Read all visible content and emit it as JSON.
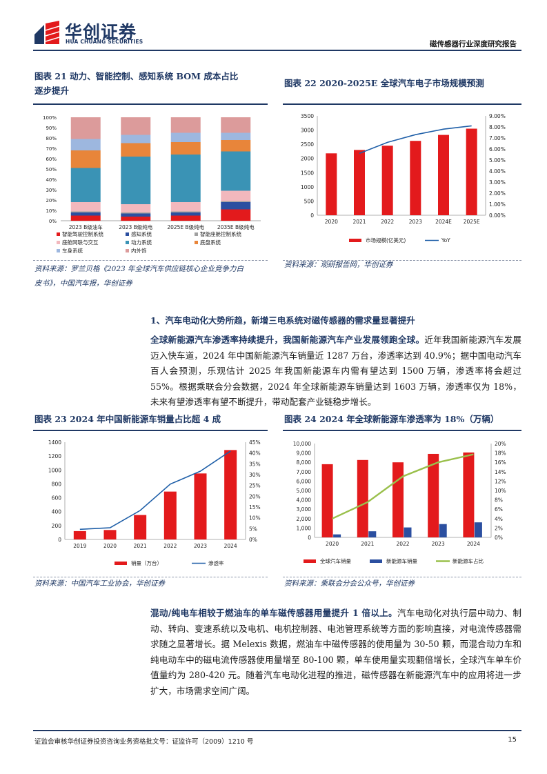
{
  "header": {
    "logo_cn": "华创证券",
    "logo_en": "HUA CHUANG SECURITIES",
    "report_title": "磁传感器行业深度研究报告"
  },
  "fig21": {
    "title_line1": "图表 21   动力、智能控制、感知系统 BOM 成本占比",
    "title_line2": "逐步提升",
    "source_line1": "资料来源：罗兰贝格《2023 年全球汽车供应链核心企业竞争力白",
    "source_line2": "皮书》，中国汽车报，华创证券",
    "chart_data": {
      "type": "bar",
      "stacked": true,
      "categories": [
        "2023 B级油车",
        "2023 B级纯电",
        "2025E B级纯电",
        "2035E B级纯电"
      ],
      "yticks": [
        "0%",
        "10%",
        "20%",
        "30%",
        "40%",
        "50%",
        "60%",
        "70%",
        "80%",
        "90%",
        "100%"
      ],
      "ylim": [
        0,
        100
      ],
      "series": [
        {
          "name": "智能驾驶控制系统",
          "color": "#e31a1c",
          "values": [
            5,
            4,
            5,
            11
          ]
        },
        {
          "name": "感知系统",
          "color": "#2b4fa0",
          "values": [
            3,
            3,
            3,
            7
          ]
        },
        {
          "name": "智能座舱控制系统",
          "color": "#a0a0a0",
          "values": [
            1,
            1,
            1,
            1
          ]
        },
        {
          "name": "座舱网联与交互",
          "color": "#f2b8bd",
          "values": [
            9,
            8,
            9,
            10
          ]
        },
        {
          "name": "动力系统",
          "color": "#3a93b5",
          "values": [
            33,
            46,
            46,
            38
          ]
        },
        {
          "name": "底盘系统",
          "color": "#e8853a",
          "values": [
            17,
            13,
            12,
            11
          ]
        },
        {
          "name": "车身系统",
          "color": "#9db7df",
          "values": [
            11,
            8,
            9,
            7
          ]
        },
        {
          "name": "内外饰",
          "color": "#dc9b9b",
          "values": [
            21,
            17,
            15,
            15
          ]
        }
      ]
    }
  },
  "fig22": {
    "title": "图表 22   2020-2025E 全球汽车电子市场规模预测",
    "source": "资料来源：观研报告网，华创证券",
    "chart_data": {
      "type": "bar",
      "categories": [
        "2020",
        "2021",
        "2022",
        "2023",
        "2024E",
        "2025E"
      ],
      "yticks_left": [
        "0",
        "500",
        "1000",
        "1500",
        "2000",
        "2500",
        "3000",
        "3500"
      ],
      "yticks_right": [
        "0.00%",
        "1.00%",
        "2.00%",
        "3.00%",
        "4.00%",
        "5.00%",
        "6.00%",
        "7.00%",
        "8.00%",
        "9.00%"
      ],
      "ylim": [
        0,
        3500
      ],
      "y2lim": [
        0,
        9
      ],
      "series": [
        {
          "name": "市场规模(亿美元)",
          "type": "bar",
          "color": "#e31a1c",
          "values": [
            2180,
            2300,
            2450,
            2620,
            2830,
            3050
          ]
        },
        {
          "name": "YoY",
          "type": "line",
          "color": "#1f5fa8",
          "values": [
            null,
            5.6,
            6.6,
            7.3,
            7.8,
            8.1
          ]
        }
      ]
    }
  },
  "section": {
    "title": "1、汽车电动化大势所趋，新增三电系统对磁传感器的需求量显著提升"
  },
  "para1": {
    "lead": "全球新能源汽车渗透率持续提升，我国新能源汽车产业发展领跑全球。",
    "body": "近年我国新能源汽车发展迈入快车道，2024 年中国新能源汽车销量近 1287 万台，渗透率达到 40.9%；据中国电动汽车百人会预测，乐观估计 2025 年我国新能源车内需有望达到 1500 万辆，渗透率将会超过 55%。根据乘联会分会数据，2024 年全球新能源车销量达到 1603 万辆，渗透率仅为 18%，未来有望渗透率有望不断提升，带动配套产业链稳步增长。"
  },
  "fig23": {
    "title": "图表 23   2024 年中国新能源车销量占比超 4 成",
    "source": "资料来源：中国汽车工业协会，华创证券",
    "chart_data": {
      "type": "bar",
      "categories": [
        "2019",
        "2020",
        "2021",
        "2022",
        "2023",
        "2024"
      ],
      "yticks_left": [
        "0",
        "200",
        "400",
        "600",
        "800",
        "1000",
        "1200",
        "1400"
      ],
      "yticks_right": [
        "0%",
        "5%",
        "10%",
        "15%",
        "20%",
        "25%",
        "30%",
        "35%",
        "40%",
        "45%"
      ],
      "ylim": [
        0,
        1400
      ],
      "y2lim": [
        0,
        45
      ],
      "series": [
        {
          "name": "销量（万台）",
          "type": "bar",
          "color": "#e31a1c",
          "values": [
            120,
            136,
            352,
            689,
            950,
            1287
          ]
        },
        {
          "name": "渗透率",
          "type": "line",
          "color": "#1f5fa8",
          "values": [
            4.7,
            5.4,
            13.4,
            25.6,
            31.6,
            40.9
          ]
        }
      ]
    }
  },
  "fig24": {
    "title": "图表 24   2024 年全球新能源车渗透率为 18%（万辆）",
    "source": "资料来源：乘联会分会公众号，华创证券",
    "chart_data": {
      "type": "bar",
      "categories": [
        "2020",
        "2021",
        "2022",
        "2023",
        "2024"
      ],
      "yticks_left": [
        "0",
        "1,000",
        "2,000",
        "3,000",
        "4,000",
        "5,000",
        "6,000",
        "7,000",
        "8,000",
        "9,000",
        "10,000"
      ],
      "yticks_right": [
        "0%",
        "2%",
        "4%",
        "6%",
        "8%",
        "10%",
        "12%",
        "14%",
        "16%",
        "18%",
        "20%"
      ],
      "ylim": [
        0,
        10000
      ],
      "y2lim": [
        0,
        20
      ],
      "series": [
        {
          "name": "全球汽车销量",
          "type": "bar",
          "color": "#e31a1c",
          "values": [
            7800,
            8250,
            8000,
            8900,
            9050
          ]
        },
        {
          "name": "新能源车销量",
          "type": "bar",
          "color": "#2b4fa0",
          "values": [
            320,
            650,
            1060,
            1420,
            1603
          ]
        },
        {
          "name": "新能源车占比",
          "type": "line",
          "color": "#9ac04c",
          "values": [
            4.0,
            7.5,
            13.0,
            16.0,
            17.7
          ]
        }
      ]
    }
  },
  "para2": {
    "lead": "混动/纯电车相较于燃油车的单车磁传感器用量提升 1 倍以上。",
    "body": "汽车电动化对执行层中动力、制动、转向、变速系统以及电机、电机控制器、电池管理系统等方面的影响直接，对电流传感器需求随之显著增长。据 Melexis 数据，燃油车中磁传感器的使用量为 30-50 颗，而混合动力车和纯电动车中的磁电流传感器使用量增至 80-100 颗，单车使用量实现翻倍增长，全球汽车单车价值量约为 280-420 元。随着汽车电动化进程的推进，磁传感器在新能源汽车中的应用将进一步扩大，市场需求空间广阔。"
  },
  "footer": {
    "license": "证监会审核华创证券投资咨询业务资格批文号：证监许可（2009）1210 号",
    "page": "15"
  },
  "colors": {
    "brand_navy": "#1f3864",
    "brand_red": "#e31a1c"
  }
}
